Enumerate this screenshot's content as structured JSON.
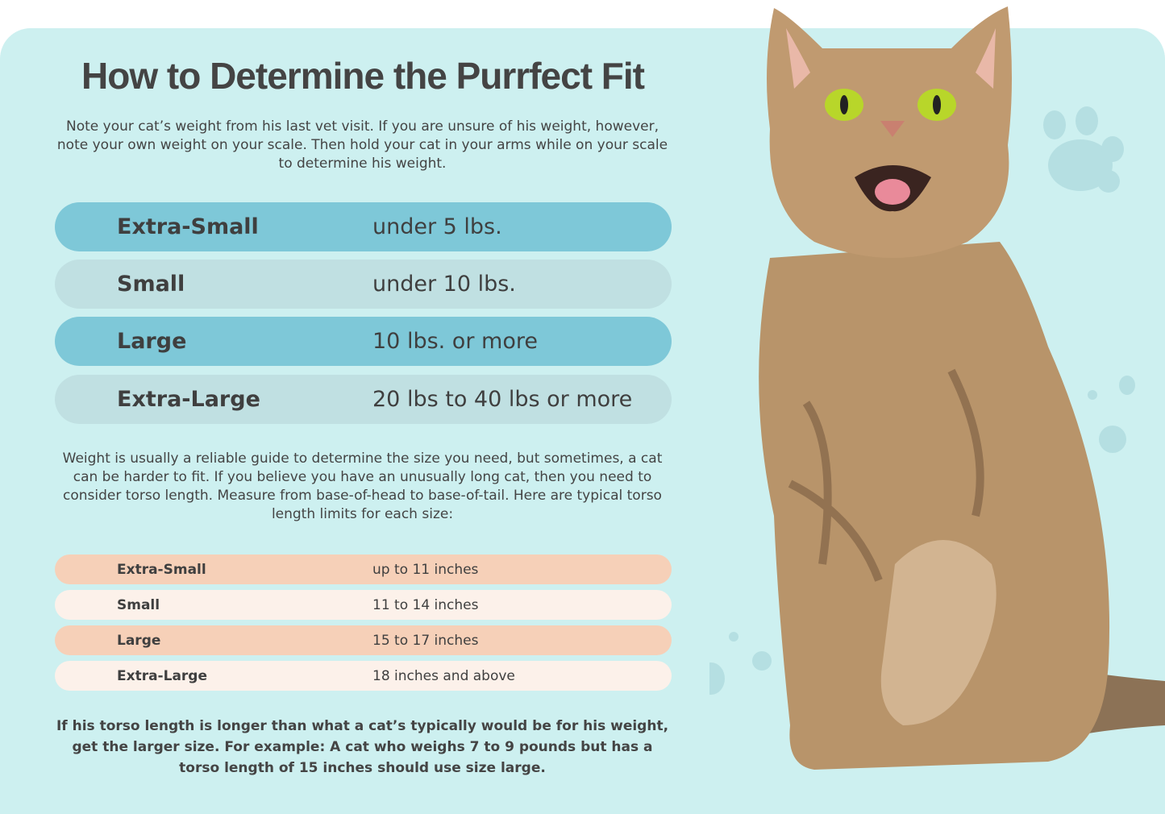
{
  "title": "How to Determine the Purrfect Fit",
  "intro": "Note your cat’s weight from his last vet visit. If you are unsure of his weight, however, note your own weight on your scale. Then hold your cat in your arms while on your scale to determine his weight.",
  "weight_table": [
    {
      "size": "Extra-Small",
      "value": "under 5 lbs."
    },
    {
      "size": "Small",
      "value": "under 10 lbs."
    },
    {
      "size": "Large",
      "value": "10 lbs. or more"
    },
    {
      "size": "Extra-Large",
      "value": "20 lbs to 40 lbs or more"
    }
  ],
  "torso_intro": "Weight is usually a reliable guide to determine the size you need, but sometimes, a cat can be harder to fit. If you believe you have an unusually long cat, then you need to consider torso length. Measure from base-of-head to base-of-tail. Here are typical torso length limits for each size:",
  "torso_table": [
    {
      "size": "Extra-Small",
      "value": "up to 11 inches"
    },
    {
      "size": "Small",
      "value": "11 to 14 inches"
    },
    {
      "size": "Large",
      "value": "15 to 17 inches"
    },
    {
      "size": "Extra-Large",
      "value": "18 inches and above"
    }
  ],
  "note": "If his torso length is longer than what a cat’s typically would be for his weight, get the larger size. For example: A cat who weighs 7 to 9 pounds but has a torso length of 15 inches should use size large.",
  "colors": {
    "background": "#cdf0f0",
    "blue_row": "#7ec8d8",
    "gray_row": "#c0e0e2",
    "peach_row": "#f6d0b8",
    "cream_row": "#fcf1ea"
  }
}
